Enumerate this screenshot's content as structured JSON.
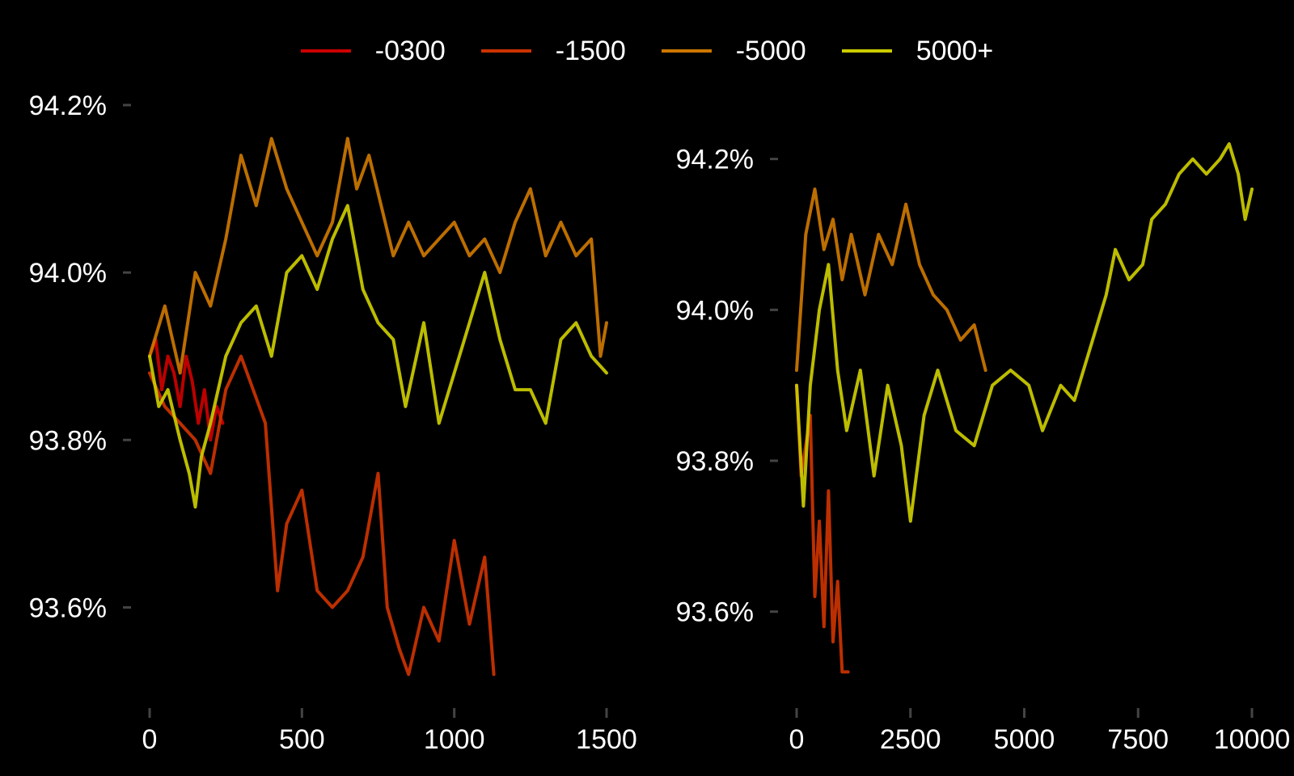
{
  "legend": {
    "placement": "top-center",
    "items": [
      {
        "label": "-0300",
        "color": "#cc0000"
      },
      {
        "label": "-1500",
        "color": "#cc3300"
      },
      {
        "label": "-5000",
        "color": "#cc7700"
      },
      {
        "label": "5000+",
        "color": "#cccc00"
      }
    ]
  },
  "chart_data": [
    {
      "type": "line",
      "title": "",
      "xlabel": "",
      "ylabel": "",
      "grid": false,
      "xlim": [
        0,
        1500
      ],
      "ylim": [
        93.5,
        94.2
      ],
      "x_ticks": [
        0,
        500,
        1000,
        1500
      ],
      "x_tick_labels": [
        "0",
        "500",
        "1000",
        "1500"
      ],
      "y_ticks": [
        93.6,
        93.8,
        94.0,
        94.2
      ],
      "y_tick_labels": [
        "93.6%",
        "93.8%",
        "94.0%",
        "94.2%"
      ],
      "series": [
        {
          "name": "-0300",
          "color": "#cc0000",
          "x": [
            0,
            20,
            40,
            60,
            80,
            100,
            120,
            140,
            160,
            180,
            200,
            220,
            240
          ],
          "y": [
            93.9,
            93.92,
            93.86,
            93.9,
            93.88,
            93.84,
            93.9,
            93.87,
            93.82,
            93.86,
            93.8,
            93.84,
            93.82
          ]
        },
        {
          "name": "-1500",
          "color": "#cc3300",
          "x": [
            0,
            50,
            100,
            150,
            200,
            250,
            300,
            350,
            380,
            420,
            450,
            500,
            550,
            600,
            650,
            700,
            750,
            780,
            820,
            850,
            900,
            950,
            1000,
            1050,
            1100,
            1130
          ],
          "y": [
            93.88,
            93.84,
            93.82,
            93.8,
            93.76,
            93.86,
            93.9,
            93.85,
            93.82,
            93.62,
            93.7,
            93.74,
            93.62,
            93.6,
            93.62,
            93.66,
            93.76,
            93.6,
            93.55,
            93.52,
            93.6,
            93.56,
            93.68,
            93.58,
            93.66,
            93.52
          ]
        },
        {
          "name": "-5000",
          "color": "#cc7700",
          "x": [
            0,
            50,
            100,
            150,
            200,
            250,
            300,
            350,
            400,
            450,
            500,
            550,
            600,
            650,
            680,
            720,
            760,
            800,
            850,
            900,
            950,
            1000,
            1050,
            1100,
            1150,
            1200,
            1250,
            1300,
            1350,
            1400,
            1450,
            1480,
            1500
          ],
          "y": [
            93.9,
            93.96,
            93.88,
            94.0,
            93.96,
            94.04,
            94.14,
            94.08,
            94.16,
            94.1,
            94.06,
            94.02,
            94.06,
            94.16,
            94.1,
            94.14,
            94.08,
            94.02,
            94.06,
            94.02,
            94.04,
            94.06,
            94.02,
            94.04,
            94.0,
            94.06,
            94.1,
            94.02,
            94.06,
            94.02,
            94.04,
            93.9,
            93.94
          ]
        },
        {
          "name": "5000+",
          "color": "#cccc00",
          "x": [
            0,
            30,
            60,
            100,
            130,
            150,
            170,
            200,
            250,
            300,
            350,
            400,
            450,
            500,
            550,
            600,
            650,
            700,
            750,
            800,
            840,
            900,
            950,
            1000,
            1050,
            1100,
            1150,
            1200,
            1250,
            1300,
            1350,
            1400,
            1450,
            1500
          ],
          "y": [
            93.9,
            93.84,
            93.86,
            93.8,
            93.76,
            93.72,
            93.78,
            93.82,
            93.9,
            93.94,
            93.96,
            93.9,
            94.0,
            94.02,
            93.98,
            94.04,
            94.08,
            93.98,
            93.94,
            93.92,
            93.84,
            93.94,
            93.82,
            93.88,
            93.94,
            94.0,
            93.92,
            93.86,
            93.86,
            93.82,
            93.92,
            93.94,
            93.9,
            93.88
          ]
        }
      ]
    },
    {
      "type": "line",
      "title": "",
      "xlabel": "",
      "ylabel": "",
      "grid": false,
      "xlim": [
        0,
        10000
      ],
      "ylim": [
        93.5,
        94.25
      ],
      "x_ticks": [
        0,
        2500,
        5000,
        7500,
        10000
      ],
      "x_tick_labels": [
        "0",
        "2500",
        "5000",
        "7500",
        "10000"
      ],
      "y_ticks": [
        93.6,
        93.8,
        94.0,
        94.2
      ],
      "y_tick_labels": [
        "93.6%",
        "93.8%",
        "94.0%",
        "94.2%"
      ],
      "series": [
        {
          "name": "-1500",
          "color": "#cc3300",
          "x": [
            0,
            100,
            200,
            300,
            400,
            500,
            600,
            700,
            800,
            900,
            1000,
            1130
          ],
          "y": [
            93.9,
            93.78,
            93.82,
            93.86,
            93.62,
            93.72,
            93.58,
            93.76,
            93.56,
            93.64,
            93.52,
            93.52
          ]
        },
        {
          "name": "-5000",
          "color": "#cc7700",
          "x": [
            0,
            200,
            400,
            600,
            800,
            1000,
            1200,
            1500,
            1800,
            2100,
            2400,
            2700,
            3000,
            3300,
            3600,
            3900,
            4150
          ],
          "y": [
            93.92,
            94.1,
            94.16,
            94.08,
            94.12,
            94.04,
            94.1,
            94.02,
            94.1,
            94.06,
            94.14,
            94.06,
            94.02,
            94.0,
            93.96,
            93.98,
            93.92
          ]
        },
        {
          "name": "5000+",
          "color": "#cccc00",
          "x": [
            0,
            150,
            300,
            500,
            700,
            900,
            1100,
            1400,
            1700,
            2000,
            2300,
            2500,
            2800,
            3100,
            3500,
            3900,
            4300,
            4700,
            5100,
            5400,
            5800,
            6100,
            6500,
            6800,
            7000,
            7300,
            7600,
            7800,
            8100,
            8400,
            8700,
            9000,
            9300,
            9500,
            9700,
            9850,
            10000
          ],
          "y": [
            93.9,
            93.74,
            93.9,
            94.0,
            94.06,
            93.92,
            93.84,
            93.92,
            93.78,
            93.9,
            93.82,
            93.72,
            93.86,
            93.92,
            93.84,
            93.82,
            93.9,
            93.92,
            93.9,
            93.84,
            93.9,
            93.88,
            93.96,
            94.02,
            94.08,
            94.04,
            94.06,
            94.12,
            94.14,
            94.18,
            94.2,
            94.18,
            94.2,
            94.22,
            94.18,
            94.12,
            94.16
          ]
        }
      ]
    }
  ]
}
